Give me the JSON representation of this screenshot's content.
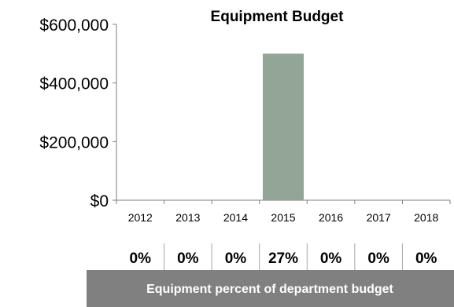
{
  "chart_data": {
    "type": "bar",
    "title": "Equipment Budget",
    "xlabel": "",
    "ylabel": "",
    "categories": [
      "2012",
      "2013",
      "2014",
      "2015",
      "2016",
      "2017",
      "2018"
    ],
    "values": [
      0,
      0,
      0,
      500000,
      0,
      0,
      0
    ],
    "ylim": [
      0,
      600000
    ],
    "yticks": [
      0,
      200000,
      400000,
      600000
    ],
    "ytick_labels": [
      "$0",
      "$200,000",
      "$400,000",
      "$600,000"
    ],
    "grid": false,
    "bar_color": "#93A596",
    "percent_row": [
      "0%",
      "0%",
      "0%",
      "27%",
      "0%",
      "0%",
      "0%"
    ],
    "footer_label": "Equipment percent of department budget",
    "footer_color": "#808080"
  }
}
